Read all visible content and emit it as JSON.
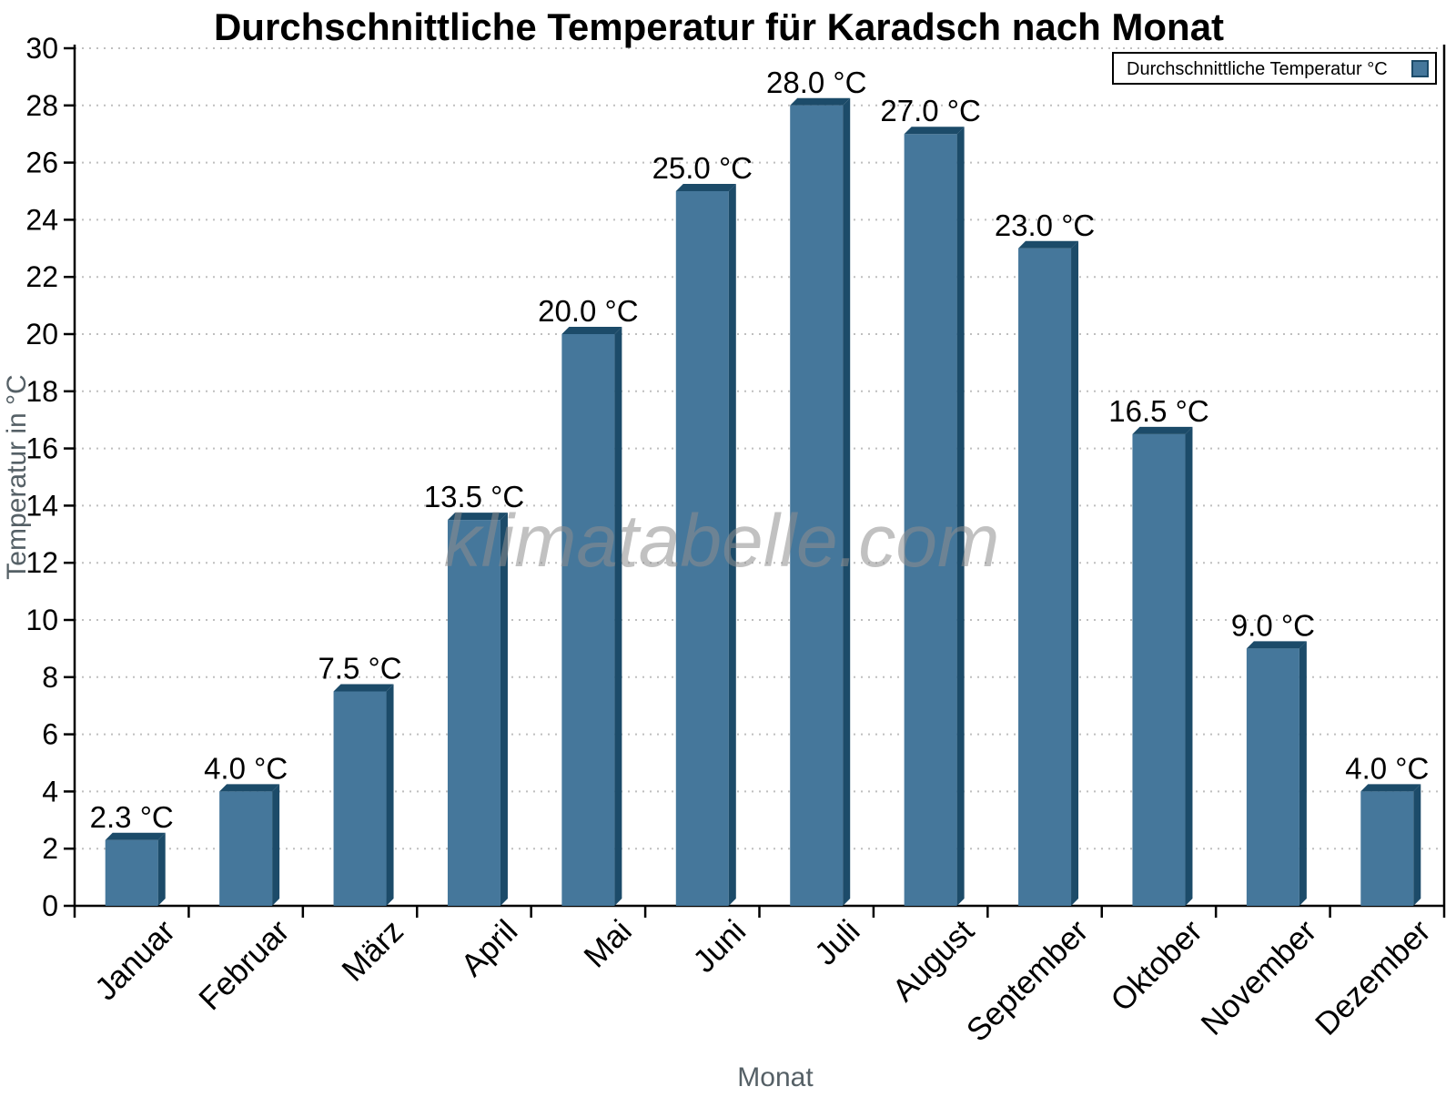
{
  "title": "Durchschnittliche Temperatur für Karadsch nach Monat",
  "watermark": "klimatabelle.com",
  "legend": {
    "label": "Durchschnittliche Temperatur °C"
  },
  "chart_data": {
    "type": "bar",
    "title": "Durchschnittliche Temperatur für Karadsch nach Monat",
    "categories": [
      "Januar",
      "Februar",
      "März",
      "April",
      "Mai",
      "Juni",
      "Juli",
      "August",
      "September",
      "Oktober",
      "November",
      "Dezember"
    ],
    "values": [
      2.3,
      4.0,
      7.5,
      13.5,
      20.0,
      25.0,
      28.0,
      27.0,
      23.0,
      16.5,
      9.0,
      4.0
    ],
    "value_labels": [
      "2.3 °C",
      "4.0 °C",
      "7.5 °C",
      "13.5 °C",
      "20.0 °C",
      "25.0 °C",
      "28.0 °C",
      "27.0 °C",
      "23.0 °C",
      "16.5 °C",
      "9.0 °C",
      "4.0 °C"
    ],
    "series_name": "Durchschnittliche Temperatur °C",
    "xlabel": "Monat",
    "ylabel": "Temperatur in °C",
    "ylim": [
      0,
      30
    ],
    "ytick_step": 2,
    "grid": "horizontal-dotted",
    "legend_position": "top-right",
    "bar_color": "#45779b",
    "bar_shade_color": "#1c4b69",
    "grid_color": "#bfbfbf",
    "axis_color": "#000000",
    "axis_title_color": "#556066",
    "watermark_color": "#8e8e8e"
  }
}
